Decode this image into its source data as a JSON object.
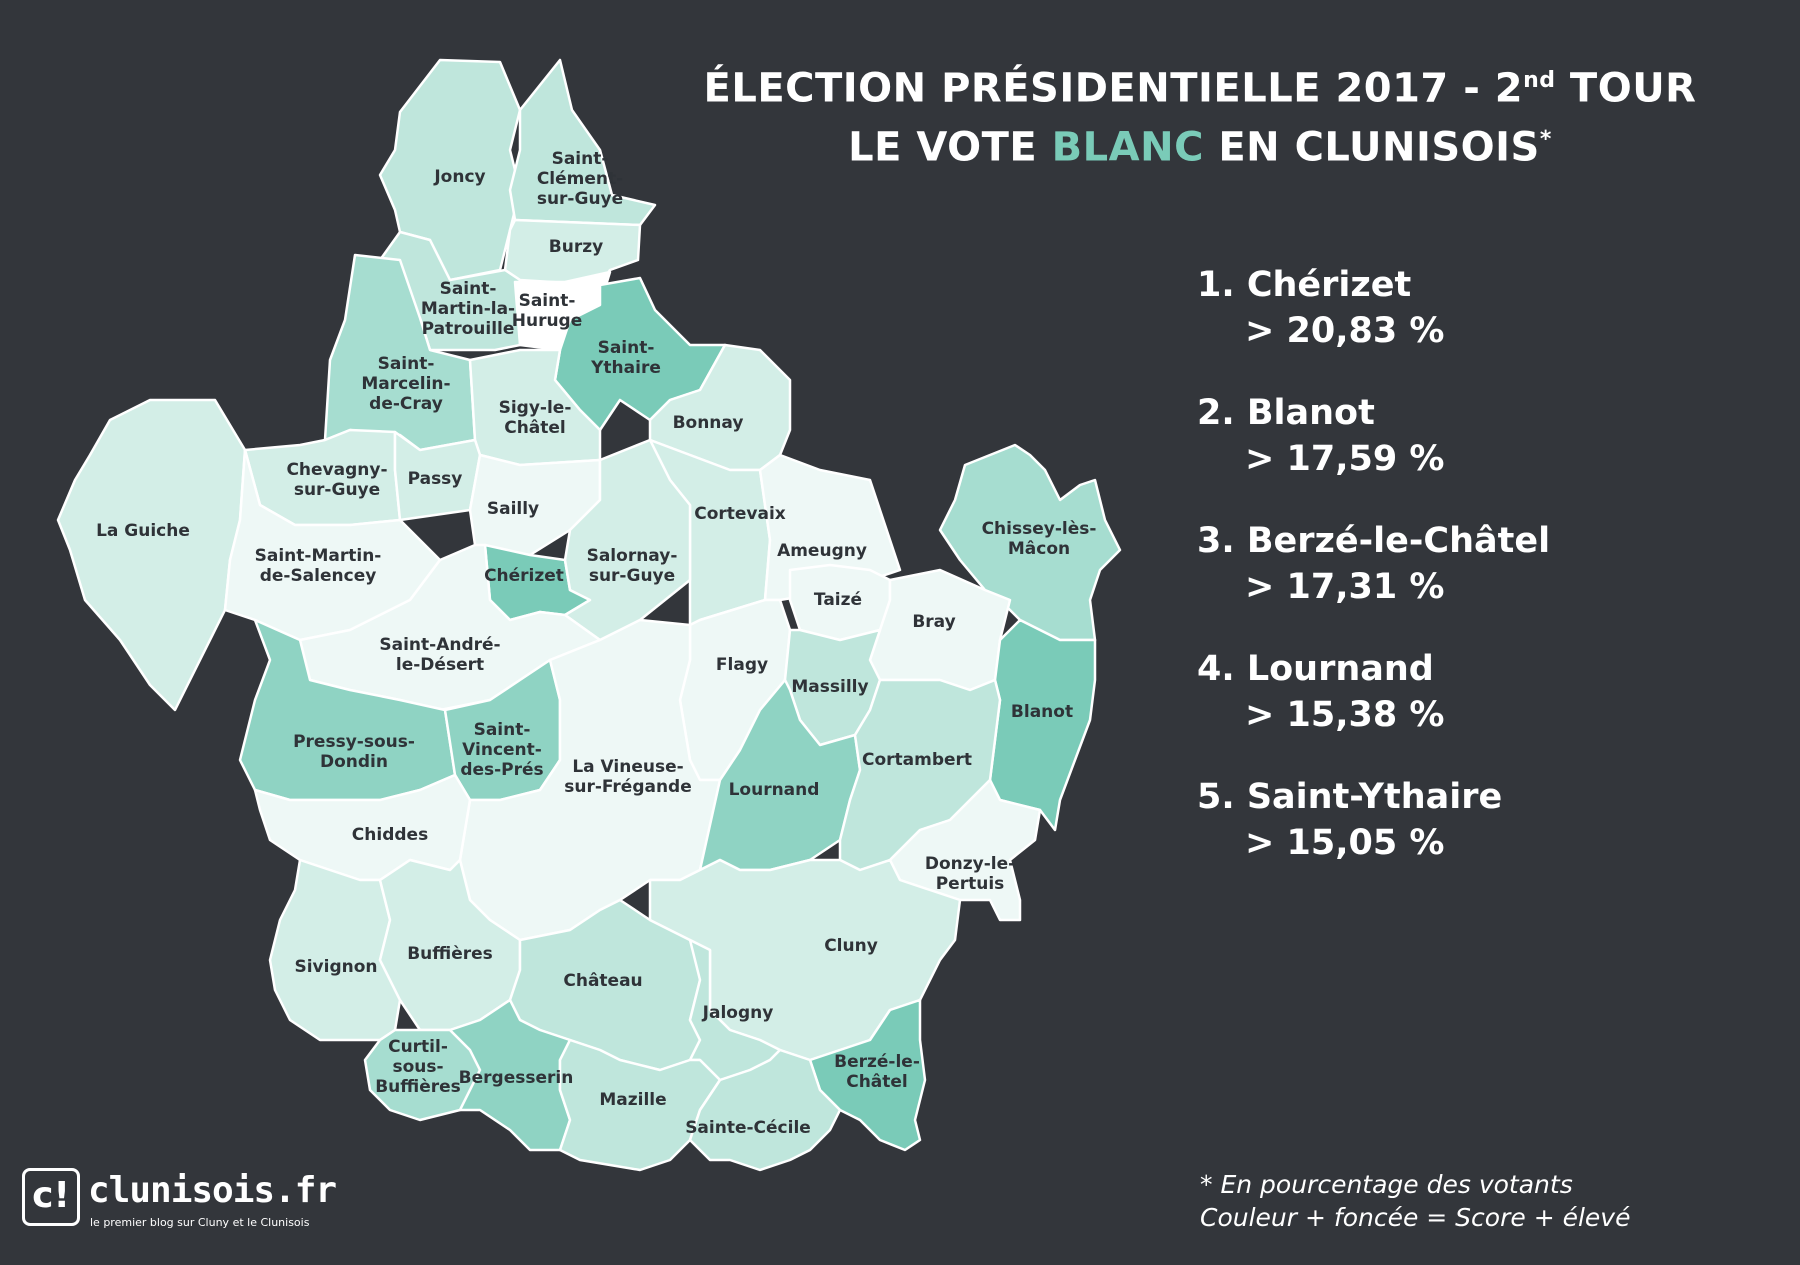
{
  "title": {
    "line1_prefix": "ÉLECTION PRÉSIDENTIELLE 2017 - 2",
    "line1_sup": "nd",
    "line1_suffix": " TOUR",
    "line2_prefix": "LE VOTE ",
    "line2_accent": "BLANC",
    "line2_suffix": " EN CLUNISOIS",
    "line2_sup": "*"
  },
  "colors": {
    "background": "#33363b",
    "accent": "#7acbb8",
    "text": "#ffffff",
    "label": "#2f3338"
  },
  "ranking": [
    {
      "name": "1. Chérizet",
      "value": "> 20,83 %"
    },
    {
      "name": "2. Blanot",
      "value": "> 17,59 %"
    },
    {
      "name": "3. Berzé-le-Châtel",
      "value": "> 17,31 %"
    },
    {
      "name": "4. Lournand",
      "value": "> 15,38 %"
    },
    {
      "name": "5. Saint-Ythaire",
      "value": "> 15,05 %"
    }
  ],
  "footnote": {
    "line1": "* En pourcentage des votants",
    "line2": "Couleur + foncée = Score + élevé"
  },
  "logo": {
    "mark": "c!",
    "name": "clunisois.fr",
    "tagline": "le premier blog sur Cluny et le Clunisois"
  },
  "communes": {
    "joncy": [
      "Joncy"
    ],
    "saint_clement": [
      "Saint-",
      "Clément-",
      "sur-Guye"
    ],
    "burzy": [
      "Burzy"
    ],
    "saint_martin_patrouille": [
      "Saint-",
      "Martin-la-",
      "Patrouille"
    ],
    "saint_huruge": [
      "Saint-",
      "Huruge"
    ],
    "saint_ythaire": [
      "Saint-",
      "Ythaire"
    ],
    "saint_marcelin": [
      "Saint-",
      "Marcelin-",
      "de-Cray"
    ],
    "sigy": [
      "Sigy-le-",
      "Châtel"
    ],
    "bonnay": [
      "Bonnay"
    ],
    "chevagny": [
      "Chevagny-",
      "sur-Guye"
    ],
    "passy": [
      "Passy"
    ],
    "sailly": [
      "Sailly"
    ],
    "cortevaix": [
      "Cortevaix"
    ],
    "la_guiche": [
      "La Guiche"
    ],
    "saint_martin_salencey": [
      "Saint-Martin-",
      "de-Salencey"
    ],
    "cherizet": [
      "Chérizet"
    ],
    "salornay": [
      "Salornay-",
      "sur-Guye"
    ],
    "ameugny": [
      "Ameugny"
    ],
    "chissey": [
      "Chissey-lès-",
      "Mâcon"
    ],
    "taize": [
      "Taizé"
    ],
    "bray": [
      "Bray"
    ],
    "saint_andre": [
      "Saint-André-",
      "le-Désert"
    ],
    "flagy": [
      "Flagy"
    ],
    "massilly": [
      "Massilly"
    ],
    "blanot": [
      "Blanot"
    ],
    "pressy": [
      "Pressy-sous-",
      "Dondin"
    ],
    "saint_vincent": [
      "Saint-",
      "Vincent-",
      "des-Prés"
    ],
    "la_vineuse": [
      "La Vineuse-",
      "sur-Frégande"
    ],
    "lournand": [
      "Lournand"
    ],
    "cortambert": [
      "Cortambert"
    ],
    "chiddes": [
      "Chiddes"
    ],
    "donzy": [
      "Donzy-le-",
      "Pertuis"
    ],
    "sivignon": [
      "Sivignon"
    ],
    "buffieres": [
      "Buffières"
    ],
    "chateau": [
      "Château"
    ],
    "cluny": [
      "Cluny"
    ],
    "jalogny": [
      "Jalogny"
    ],
    "curtil": [
      "Curtil-",
      "sous-",
      "Buffières"
    ],
    "bergesserin": [
      "Bergesserin"
    ],
    "mazille": [
      "Mazille"
    ],
    "berze": [
      "Berzé-le-",
      "Châtel"
    ],
    "sainte_cecile": [
      "Sainte-Cécile"
    ]
  }
}
